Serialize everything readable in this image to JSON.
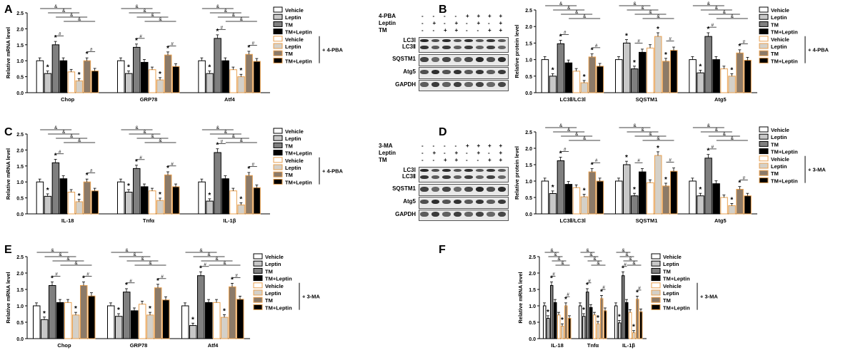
{
  "colors": {
    "vehicle": "#ffffff",
    "leptin": "#c8c8c8",
    "tm": "#7f7f7f",
    "tm_leptin": "#000000",
    "vehicle2_edge": "#e8a050",
    "leptin2": "#d4d0c8",
    "tm2": "#8c7a68",
    "tm_leptin2": "#000000"
  },
  "legend_labels": [
    "Vehicle",
    "Leptin",
    "TM",
    "TM+Leptin",
    "Vehicle",
    "Leptin",
    "TM",
    "TM+Leptin"
  ],
  "chart_data": [
    {
      "panel": "A",
      "type": "bar",
      "ylabel": "Relative mRNA level",
      "ylim": [
        0,
        2.5
      ],
      "yticks": [
        "0.0",
        "0.5",
        "1.0",
        "1.5",
        "2.0",
        "2.5"
      ],
      "categories": [
        "Chop",
        "GRP78",
        "Atf4"
      ],
      "treatment": "+ 4-PBA",
      "series": [
        {
          "name": "Vehicle",
          "values": [
            1.0,
            1.0,
            1.0
          ]
        },
        {
          "name": "Leptin",
          "values": [
            0.6,
            0.6,
            0.6
          ]
        },
        {
          "name": "TM",
          "values": [
            1.5,
            1.42,
            1.7
          ]
        },
        {
          "name": "TM+Leptin",
          "values": [
            1.0,
            0.95,
            1.0
          ]
        },
        {
          "name": "Vehicle",
          "values": [
            0.65,
            0.72,
            0.72
          ]
        },
        {
          "name": "Leptin",
          "values": [
            0.37,
            0.4,
            0.5
          ]
        },
        {
          "name": "TM",
          "values": [
            1.0,
            1.18,
            1.2
          ]
        },
        {
          "name": "TM+Leptin",
          "values": [
            0.68,
            0.82,
            0.98
          ]
        }
      ],
      "stars": [
        1,
        5,
        2,
        6
      ],
      "sig_labels": [
        "&",
        "#"
      ]
    },
    {
      "panel": "B",
      "type": "bar",
      "ylabel": "Relative protein level",
      "ylim": [
        0,
        2.5
      ],
      "yticks": [
        "0.0",
        "0.5",
        "1.0",
        "1.5",
        "2.0",
        "2.5"
      ],
      "categories": [
        "LC3Ⅱ/LC3Ⅰ",
        "SQSTM1",
        "Atg5"
      ],
      "treatment": "+ 4-PBA",
      "series": [
        {
          "name": "Vehicle",
          "values": [
            1.0,
            1.0,
            1.0
          ]
        },
        {
          "name": "Leptin",
          "values": [
            0.5,
            1.5,
            0.6
          ]
        },
        {
          "name": "TM",
          "values": [
            1.48,
            0.72,
            1.7
          ]
        },
        {
          "name": "TM+Leptin",
          "values": [
            0.9,
            1.22,
            1.0
          ]
        },
        {
          "name": "Vehicle",
          "values": [
            0.65,
            1.35,
            0.72
          ]
        },
        {
          "name": "Leptin",
          "values": [
            0.3,
            1.7,
            0.5
          ]
        },
        {
          "name": "TM",
          "values": [
            1.08,
            0.95,
            1.2
          ]
        },
        {
          "name": "TM+Leptin",
          "values": [
            0.8,
            1.28,
            0.98
          ]
        }
      ],
      "stars": [
        1,
        5,
        2,
        6
      ],
      "sig_labels": [
        "&",
        "#"
      ]
    },
    {
      "panel": "C",
      "type": "bar",
      "ylabel": "Relative mRNA level",
      "ylim": [
        0,
        2.5
      ],
      "yticks": [
        "0.0",
        "0.5",
        "1.0",
        "1.5",
        "2.0",
        "2.5"
      ],
      "categories": [
        "IL-18",
        "Tnfα",
        "IL-1β"
      ],
      "treatment": "+ 4-PBA",
      "series": [
        {
          "name": "Vehicle",
          "values": [
            1.0,
            1.0,
            1.0
          ]
        },
        {
          "name": "Leptin",
          "values": [
            0.55,
            0.68,
            0.4
          ]
        },
        {
          "name": "TM",
          "values": [
            1.6,
            1.42,
            1.92
          ]
        },
        {
          "name": "TM+Leptin",
          "values": [
            1.1,
            0.85,
            1.1
          ]
        },
        {
          "name": "Vehicle",
          "values": [
            0.68,
            0.72,
            0.72
          ]
        },
        {
          "name": "Leptin",
          "values": [
            0.38,
            0.42,
            0.28
          ]
        },
        {
          "name": "TM",
          "values": [
            1.0,
            1.22,
            1.2
          ]
        },
        {
          "name": "TM+Leptin",
          "values": [
            0.72,
            0.85,
            0.82
          ]
        }
      ],
      "stars": [
        1,
        5,
        2,
        6
      ],
      "sig_labels": [
        "&",
        "#"
      ]
    },
    {
      "panel": "D",
      "type": "bar",
      "ylabel": "Relative protein level",
      "ylim": [
        0,
        2.5
      ],
      "yticks": [
        "0.0",
        "0.5",
        "1.0",
        "1.5",
        "2.0",
        "2.5"
      ],
      "categories": [
        "LC3Ⅱ/LC3Ⅰ",
        "SQSTM1",
        "Atg5"
      ],
      "treatment": "+ 3-MA",
      "series": [
        {
          "name": "Vehicle",
          "values": [
            1.0,
            1.0,
            1.0
          ]
        },
        {
          "name": "Leptin",
          "values": [
            0.62,
            1.5,
            0.55
          ]
        },
        {
          "name": "TM",
          "values": [
            1.62,
            0.55,
            1.7
          ]
        },
        {
          "name": "TM+Leptin",
          "values": [
            0.9,
            1.28,
            0.92
          ]
        },
        {
          "name": "Vehicle",
          "values": [
            0.8,
            0.95,
            0.5
          ]
        },
        {
          "name": "Leptin",
          "values": [
            0.52,
            1.78,
            0.25
          ]
        },
        {
          "name": "TM",
          "values": [
            1.28,
            0.85,
            0.75
          ]
        },
        {
          "name": "TM+Leptin",
          "values": [
            1.0,
            1.3,
            0.55
          ]
        }
      ],
      "stars": [
        1,
        5,
        2,
        6
      ],
      "sig_labels": [
        "&",
        "#"
      ]
    },
    {
      "panel": "E",
      "type": "bar",
      "ylabel": "Relative mRNA level",
      "ylim": [
        0,
        2.5
      ],
      "yticks": [
        "0.0",
        "0.5",
        "1.0",
        "1.5",
        "2.0",
        "2.5"
      ],
      "categories": [
        "Chop",
        "GRP78",
        "Atf4"
      ],
      "treatment": "+ 3-MA",
      "series": [
        {
          "name": "Vehicle",
          "values": [
            1.0,
            1.0,
            1.0
          ]
        },
        {
          "name": "Leptin",
          "values": [
            0.58,
            0.68,
            0.4
          ]
        },
        {
          "name": "TM",
          "values": [
            1.62,
            1.42,
            1.92
          ]
        },
        {
          "name": "TM+Leptin",
          "values": [
            1.1,
            0.85,
            1.1
          ]
        },
        {
          "name": "Vehicle",
          "values": [
            1.1,
            1.05,
            1.1
          ]
        },
        {
          "name": "Leptin",
          "values": [
            0.72,
            0.72,
            0.65
          ]
        },
        {
          "name": "TM",
          "values": [
            1.62,
            1.55,
            1.58
          ]
        },
        {
          "name": "TM+Leptin",
          "values": [
            1.3,
            1.18,
            1.2
          ]
        }
      ],
      "stars": [
        1,
        5,
        2,
        6
      ],
      "sig_labels": [
        "&",
        "#"
      ]
    },
    {
      "panel": "F",
      "type": "bar",
      "ylabel": "Relative mRNA level",
      "ylim": [
        0,
        2.5
      ],
      "yticks": [
        "0.0",
        "0.5",
        "1.0",
        "1.5",
        "2.0",
        "2.5"
      ],
      "categories": [
        "IL-18",
        "Tnfα",
        "IL-1β"
      ],
      "treatment": "+ 3-MA",
      "series": [
        {
          "name": "Vehicle",
          "values": [
            1.0,
            1.0,
            1.0
          ]
        },
        {
          "name": "Leptin",
          "values": [
            0.62,
            0.68,
            0.48
          ]
        },
        {
          "name": "TM",
          "values": [
            1.62,
            1.42,
            1.92
          ]
        },
        {
          "name": "TM+Leptin",
          "values": [
            1.1,
            0.95,
            1.1
          ]
        },
        {
          "name": "Vehicle",
          "values": [
            0.72,
            0.72,
            0.8
          ]
        },
        {
          "name": "Leptin",
          "values": [
            0.38,
            0.45,
            0.18
          ]
        },
        {
          "name": "TM",
          "values": [
            1.0,
            1.22,
            1.2
          ]
        },
        {
          "name": "TM+Leptin",
          "values": [
            0.62,
            0.85,
            0.82
          ]
        }
      ],
      "stars": [
        1,
        5,
        2,
        6
      ],
      "sig_labels": [
        "&",
        "#"
      ]
    }
  ],
  "blots": [
    {
      "panel": "B",
      "treatment_label": "4-PBA",
      "rows": [
        {
          "label": "4-PBA",
          "marks": [
            "-",
            "-",
            "-",
            "-",
            "+",
            "+",
            "+",
            "+"
          ]
        },
        {
          "label": "Leptin",
          "marks": [
            "-",
            "+",
            "-",
            "+",
            "-",
            "+",
            "-",
            "+"
          ]
        },
        {
          "label": "TM",
          "marks": [
            "-",
            "-",
            "+",
            "+",
            "-",
            "-",
            "+",
            "+"
          ]
        }
      ],
      "bands": [
        "LC3Ⅰ",
        "LC3Ⅱ",
        "SQSTM1",
        "Atg5",
        "GAPDH"
      ]
    },
    {
      "panel": "D",
      "treatment_label": "3-MA",
      "rows": [
        {
          "label": "3-MA",
          "marks": [
            "-",
            "-",
            "-",
            "-",
            "+",
            "+",
            "+",
            "+"
          ]
        },
        {
          "label": "Leptin",
          "marks": [
            "-",
            "+",
            "-",
            "+",
            "-",
            "+",
            "-",
            "+"
          ]
        },
        {
          "label": "TM",
          "marks": [
            "-",
            "-",
            "+",
            "+",
            "-",
            "-",
            "+",
            "+"
          ]
        }
      ],
      "bands": [
        "LC3Ⅰ",
        "LC3Ⅱ",
        "SQSTM1",
        "Atg5",
        "GAPDH"
      ]
    }
  ]
}
